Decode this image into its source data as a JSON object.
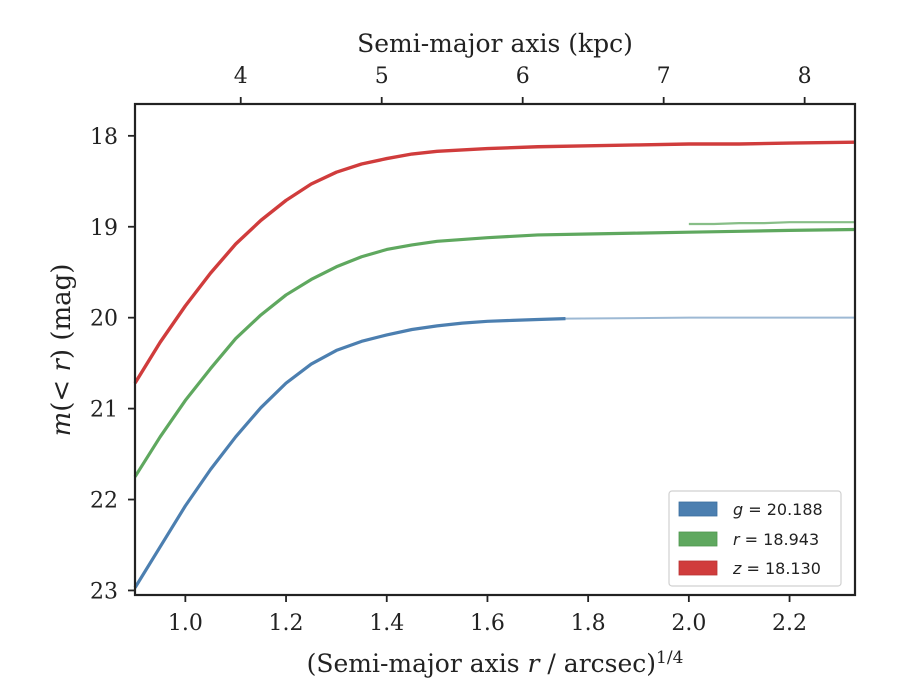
{
  "chart_data": {
    "type": "line",
    "top_xlabel": "Semi-major axis (kpc)",
    "xlabel": "(Semi-major axis r / arcsec)^1/4",
    "ylabel": "m(< r) (mag)",
    "xlim": [
      0.9,
      2.33
    ],
    "ylim": [
      23.05,
      17.63
    ],
    "y_inverted": true,
    "grid": false,
    "legend_position": "bottom-right",
    "x_ticks": [
      1.0,
      1.2,
      1.4,
      1.6,
      1.8,
      2.0,
      2.2
    ],
    "x_tick_labels": [
      "1.0",
      "1.2",
      "1.4",
      "1.6",
      "1.8",
      "2.0",
      "2.2"
    ],
    "y_ticks": [
      18,
      19,
      20,
      21,
      22,
      23
    ],
    "y_tick_labels": [
      "18",
      "19",
      "20",
      "21",
      "22",
      "23"
    ],
    "top_x_ticks": [
      {
        "label": "4",
        "x": 1.11
      },
      {
        "label": "5",
        "x": 1.39
      },
      {
        "label": "6",
        "x": 1.67
      },
      {
        "label": "7",
        "x": 1.95
      },
      {
        "label": "8",
        "x": 2.23
      }
    ],
    "series": [
      {
        "name": "g = 20.188",
        "band": "g",
        "value": "20.188",
        "color": "#4c7fb0",
        "x": [
          0.9,
          0.95,
          1.0,
          1.05,
          1.1,
          1.15,
          1.2,
          1.25,
          1.3,
          1.35,
          1.4,
          1.45,
          1.5,
          1.55,
          1.6,
          1.65,
          1.7,
          1.755
        ],
        "y": [
          22.97,
          22.52,
          22.07,
          21.67,
          21.31,
          20.99,
          20.72,
          20.51,
          20.36,
          20.26,
          20.19,
          20.13,
          20.09,
          20.06,
          20.04,
          20.03,
          20.02,
          20.01
        ],
        "faint_x": [
          1.755,
          2.0,
          2.33
        ],
        "faint_y": [
          20.01,
          20.0,
          20.0
        ]
      },
      {
        "name": "r = 18.943",
        "band": "r",
        "value": "18.943",
        "color": "#5fa85f",
        "x": [
          0.9,
          0.95,
          1.0,
          1.05,
          1.1,
          1.15,
          1.2,
          1.25,
          1.3,
          1.35,
          1.4,
          1.45,
          1.5,
          1.6,
          1.7,
          1.8,
          1.9,
          2.0,
          2.1,
          2.2,
          2.33
        ],
        "y": [
          21.75,
          21.31,
          20.91,
          20.56,
          20.23,
          19.97,
          19.75,
          19.58,
          19.44,
          19.33,
          19.25,
          19.2,
          19.16,
          19.12,
          19.09,
          19.08,
          19.07,
          19.06,
          19.05,
          19.04,
          19.03
        ],
        "band_y_upper": [
          18.97,
          18.97,
          18.96,
          18.96,
          18.95,
          18.95,
          18.95
        ],
        "band_x": [
          2.0,
          2.05,
          2.1,
          2.15,
          2.2,
          2.25,
          2.33
        ]
      },
      {
        "name": "z = 18.130",
        "band": "z",
        "value": "18.130",
        "color": "#d03c3c",
        "x": [
          0.9,
          0.95,
          1.0,
          1.05,
          1.1,
          1.15,
          1.2,
          1.25,
          1.3,
          1.35,
          1.4,
          1.45,
          1.5,
          1.6,
          1.7,
          1.8,
          1.9,
          2.0,
          2.1,
          2.2,
          2.33
        ],
        "y": [
          20.72,
          20.27,
          19.87,
          19.51,
          19.19,
          18.93,
          18.71,
          18.53,
          18.4,
          18.31,
          18.25,
          18.2,
          18.17,
          18.14,
          18.12,
          18.11,
          18.1,
          18.09,
          18.09,
          18.08,
          18.07
        ]
      }
    ]
  }
}
